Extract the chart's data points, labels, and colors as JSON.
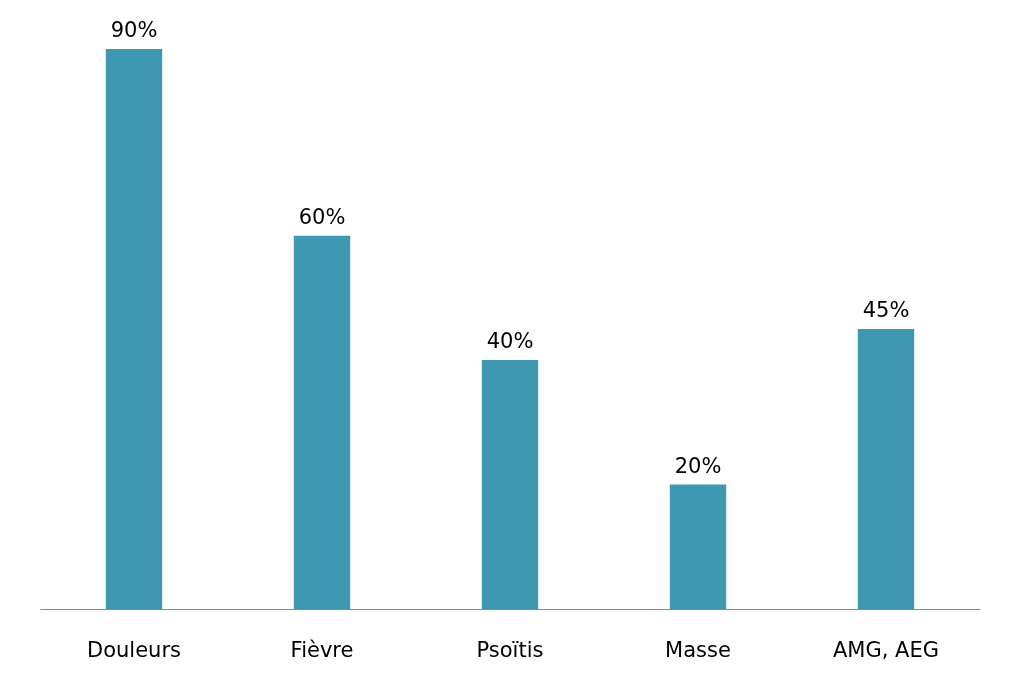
{
  "chart_data": {
    "type": "bar",
    "categories": [
      "Douleurs",
      "Fièvre",
      "Psoïtis",
      "Masse",
      "AMG, AEG"
    ],
    "values": [
      90,
      60,
      40,
      20,
      45
    ],
    "value_labels": [
      "90%",
      "60%",
      "40%",
      "20%",
      "45%"
    ],
    "color": "#3f98b1"
  }
}
